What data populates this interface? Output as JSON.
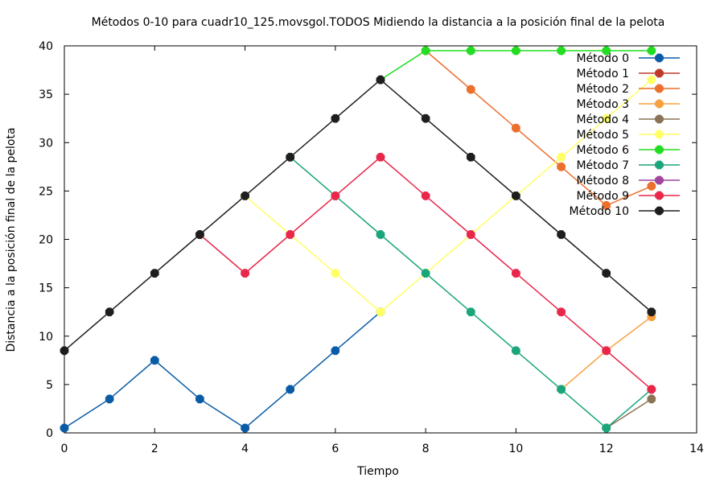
{
  "chart_data": {
    "type": "line",
    "title": "Métodos 0-10 para cuadr10_125.movsgol.TODOS Midiendo la distancia a la posición final de la pelota",
    "xlabel": "Tiempo",
    "ylabel": "Distancia a la posición final de la pelota",
    "xlim": [
      0,
      14
    ],
    "ylim": [
      0,
      40
    ],
    "xticks": [
      "0",
      "2",
      "4",
      "6",
      "8",
      "10",
      "12",
      "14"
    ],
    "yticks": [
      "0",
      "5",
      "10",
      "15",
      "20",
      "25",
      "30",
      "35",
      "40"
    ],
    "grid": false,
    "legend_position": "top-right",
    "series": [
      {
        "name": "Método 0",
        "color": "#0a5ba6",
        "points": [
          [
            0,
            0.5
          ],
          [
            1,
            3.5
          ],
          [
            2,
            7.5
          ],
          [
            3,
            3.5
          ],
          [
            4,
            0.5
          ],
          [
            5,
            4.5
          ],
          [
            6,
            8.5
          ],
          [
            7,
            12.5
          ]
        ]
      },
      {
        "name": "Método 1",
        "color": "#c0392b",
        "points": []
      },
      {
        "name": "Método 2",
        "color": "#ec6f2c",
        "points": [
          [
            8,
            39.5
          ],
          [
            9,
            35.5
          ],
          [
            10,
            31.5
          ],
          [
            11,
            27.5
          ],
          [
            12,
            23.5
          ],
          [
            13,
            25.5
          ]
        ]
      },
      {
        "name": "Método 3",
        "color": "#f8a03f",
        "points": [
          [
            11,
            4.5
          ],
          [
            12,
            8.5
          ],
          [
            13,
            12.0
          ]
        ]
      },
      {
        "name": "Método 4",
        "color": "#8b7355",
        "points": [
          [
            12,
            0.5
          ],
          [
            13,
            3.5
          ]
        ]
      },
      {
        "name": "Método 5",
        "color": "#ffff66",
        "points": [
          [
            4,
            24.5
          ],
          [
            5,
            20.5
          ],
          [
            6,
            16.5
          ],
          [
            7,
            12.5
          ],
          [
            8,
            16.5
          ],
          [
            9,
            20.5
          ],
          [
            10,
            24.5
          ],
          [
            11,
            28.5
          ],
          [
            12,
            32.5
          ],
          [
            13,
            36.5
          ]
        ]
      },
      {
        "name": "Método 6",
        "color": "#22dd22",
        "points": [
          [
            7,
            36.5
          ],
          [
            8,
            39.5
          ],
          [
            9,
            39.5
          ],
          [
            10,
            39.5
          ],
          [
            11,
            39.5
          ],
          [
            12,
            39.5
          ],
          [
            13,
            39.5
          ]
        ]
      },
      {
        "name": "Método 7",
        "color": "#1aa57a",
        "points": [
          [
            5,
            28.5
          ],
          [
            6,
            24.5
          ],
          [
            7,
            20.5
          ],
          [
            8,
            16.5
          ],
          [
            9,
            12.5
          ],
          [
            10,
            8.5
          ],
          [
            11,
            4.5
          ],
          [
            12,
            0.5
          ],
          [
            13,
            4.5
          ]
        ]
      },
      {
        "name": "Método 8",
        "color": "#a0449d",
        "points": []
      },
      {
        "name": "Método 9",
        "color": "#e8274b",
        "points": [
          [
            3,
            20.5
          ],
          [
            4,
            16.5
          ],
          [
            5,
            20.5
          ],
          [
            6,
            24.5
          ],
          [
            7,
            28.5
          ],
          [
            8,
            24.5
          ],
          [
            9,
            20.5
          ],
          [
            10,
            16.5
          ],
          [
            11,
            12.5
          ],
          [
            12,
            8.5
          ],
          [
            13,
            4.5
          ]
        ]
      },
      {
        "name": "Método 10",
        "color": "#1e1e1e",
        "points": [
          [
            0,
            8.5
          ],
          [
            1,
            12.5
          ],
          [
            2,
            16.5
          ],
          [
            3,
            20.5
          ],
          [
            4,
            24.5
          ],
          [
            5,
            28.5
          ],
          [
            6,
            32.5
          ],
          [
            7,
            36.5
          ],
          [
            8,
            32.5
          ],
          [
            9,
            28.5
          ],
          [
            10,
            24.5
          ],
          [
            11,
            20.5
          ],
          [
            12,
            16.5
          ],
          [
            13,
            12.5
          ]
        ]
      }
    ]
  }
}
